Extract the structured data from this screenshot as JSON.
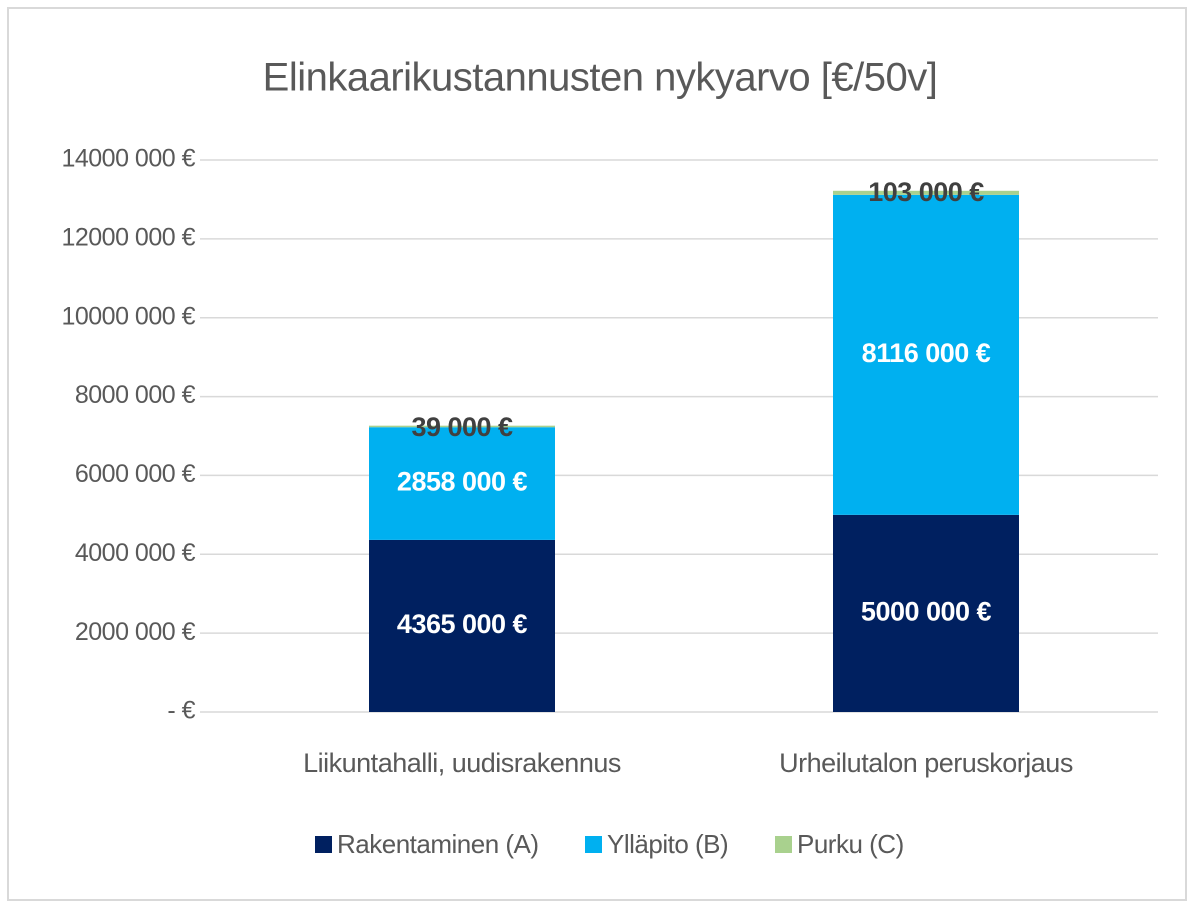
{
  "chart_data": {
    "type": "stacked_bar",
    "title": "Elinkaarikustannusten nykyarvo [€/50v]",
    "categories": [
      "Liikuntahalli, uudisrakennus",
      "Urheilutalon peruskorjaus"
    ],
    "series": [
      {
        "name": "Rakentaminen (A)",
        "color": "#002060",
        "values": [
          4365000,
          5000000
        ],
        "value_labels": [
          "4365 000 €",
          "5000 000 €"
        ]
      },
      {
        "name": "Ylläpito (B)",
        "color": "#00b0f0",
        "values": [
          2858000,
          8116000
        ],
        "value_labels": [
          "2858 000 €",
          "8116 000 €"
        ]
      },
      {
        "name": "Purku (C)",
        "color": "#a9d18e",
        "values": [
          39000,
          103000
        ],
        "value_labels": [
          "39 000 €",
          "103 000 €"
        ]
      }
    ],
    "ylim": [
      0,
      14000000
    ],
    "yticks": [
      {
        "value": 0,
        "label": "-  €"
      },
      {
        "value": 2000000,
        "label": "2000 000 €"
      },
      {
        "value": 4000000,
        "label": "4000 000 €"
      },
      {
        "value": 6000000,
        "label": "6000 000 €"
      },
      {
        "value": 8000000,
        "label": "8000 000 €"
      },
      {
        "value": 10000000,
        "label": "10000 000 €"
      },
      {
        "value": 12000000,
        "label": "12000 000 €"
      },
      {
        "value": 14000000,
        "label": "14000 000 €"
      }
    ],
    "grid": true,
    "legend": "bottom"
  }
}
